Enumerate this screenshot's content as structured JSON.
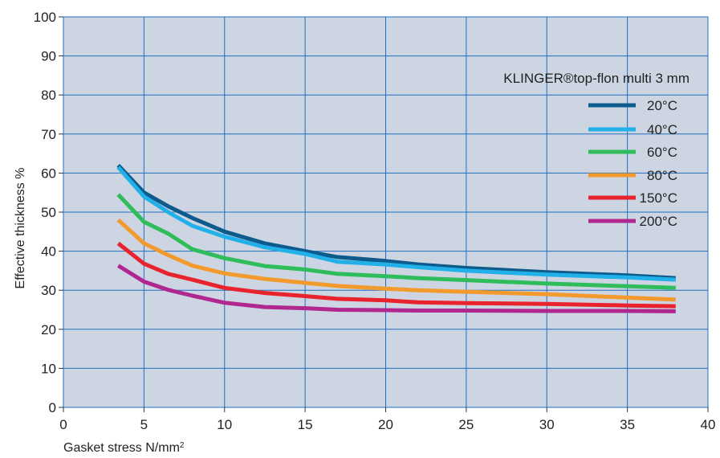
{
  "chart_data": {
    "type": "line",
    "xlabel": "Gasket stress N/mm²",
    "ylabel": "Effective thickness %",
    "xlim": [
      0,
      40
    ],
    "ylim": [
      0,
      100
    ],
    "x_ticks": [
      0,
      5,
      10,
      15,
      20,
      25,
      30,
      35,
      40
    ],
    "y_ticks": [
      0,
      10,
      20,
      30,
      40,
      50,
      60,
      70,
      80,
      90,
      100
    ],
    "grid": true,
    "plot_background": "#cdd5e2",
    "grid_color": "#1f6fc0",
    "legend_title": "KLINGER®top-flon multi 3 mm",
    "legend_position": "top-right",
    "series": [
      {
        "name": "20°C",
        "color": "#0d5a8c",
        "points": [
          [
            3.4,
            62.0
          ],
          [
            5,
            55.0
          ],
          [
            6.5,
            51.5
          ],
          [
            8,
            48.5
          ],
          [
            10,
            45.0
          ],
          [
            12.5,
            42.0
          ],
          [
            15,
            40.0
          ],
          [
            17,
            38.5
          ],
          [
            20,
            37.5
          ],
          [
            22,
            36.6
          ],
          [
            25,
            35.7
          ],
          [
            30,
            34.6
          ],
          [
            35,
            33.8
          ],
          [
            38,
            33.1
          ]
        ]
      },
      {
        "name": "40°C",
        "color": "#22b0e8",
        "points": [
          [
            3.4,
            61.5
          ],
          [
            5,
            54.0
          ],
          [
            6.5,
            50.0
          ],
          [
            8,
            46.5
          ],
          [
            10,
            43.7
          ],
          [
            12.5,
            41.0
          ],
          [
            15,
            39.3
          ],
          [
            17,
            37.3
          ],
          [
            20,
            36.6
          ],
          [
            22,
            35.9
          ],
          [
            25,
            35.0
          ],
          [
            30,
            34.0
          ],
          [
            35,
            33.3
          ],
          [
            38,
            32.7
          ]
        ]
      },
      {
        "name": "60°C",
        "color": "#2ebd5a",
        "points": [
          [
            3.4,
            54.5
          ],
          [
            5,
            47.5
          ],
          [
            6.5,
            44.5
          ],
          [
            8,
            40.5
          ],
          [
            10,
            38.2
          ],
          [
            12.5,
            36.2
          ],
          [
            15,
            35.3
          ],
          [
            17,
            34.2
          ],
          [
            20,
            33.6
          ],
          [
            22,
            33.1
          ],
          [
            25,
            32.6
          ],
          [
            30,
            31.7
          ],
          [
            35,
            31.0
          ],
          [
            38,
            30.6
          ]
        ]
      },
      {
        "name": "80°C",
        "color": "#f29a2e",
        "points": [
          [
            3.4,
            48.0
          ],
          [
            5,
            42.0
          ],
          [
            6.5,
            39.0
          ],
          [
            8,
            36.3
          ],
          [
            10,
            34.3
          ],
          [
            12.5,
            32.9
          ],
          [
            15,
            31.9
          ],
          [
            17,
            31.1
          ],
          [
            20,
            30.4
          ],
          [
            22,
            30.0
          ],
          [
            25,
            29.6
          ],
          [
            30,
            29.0
          ],
          [
            35,
            28.1
          ],
          [
            38,
            27.6
          ]
        ]
      },
      {
        "name": "150°C",
        "color": "#e8232e",
        "points": [
          [
            3.4,
            42.0
          ],
          [
            5,
            36.8
          ],
          [
            6.5,
            34.2
          ],
          [
            8,
            32.7
          ],
          [
            10,
            30.6
          ],
          [
            12.5,
            29.3
          ],
          [
            15,
            28.5
          ],
          [
            17,
            27.8
          ],
          [
            20,
            27.4
          ],
          [
            22,
            26.9
          ],
          [
            25,
            26.7
          ],
          [
            30,
            26.5
          ],
          [
            35,
            26.1
          ],
          [
            38,
            25.9
          ]
        ]
      },
      {
        "name": "200°C",
        "color": "#b0288f",
        "points": [
          [
            3.4,
            36.3
          ],
          [
            5,
            32.2
          ],
          [
            6.5,
            30.1
          ],
          [
            8,
            28.6
          ],
          [
            10,
            26.8
          ],
          [
            12.5,
            25.7
          ],
          [
            15,
            25.4
          ],
          [
            17,
            25.0
          ],
          [
            20,
            24.9
          ],
          [
            22,
            24.8
          ],
          [
            25,
            24.8
          ],
          [
            30,
            24.7
          ],
          [
            35,
            24.7
          ],
          [
            38,
            24.6
          ]
        ]
      }
    ]
  }
}
